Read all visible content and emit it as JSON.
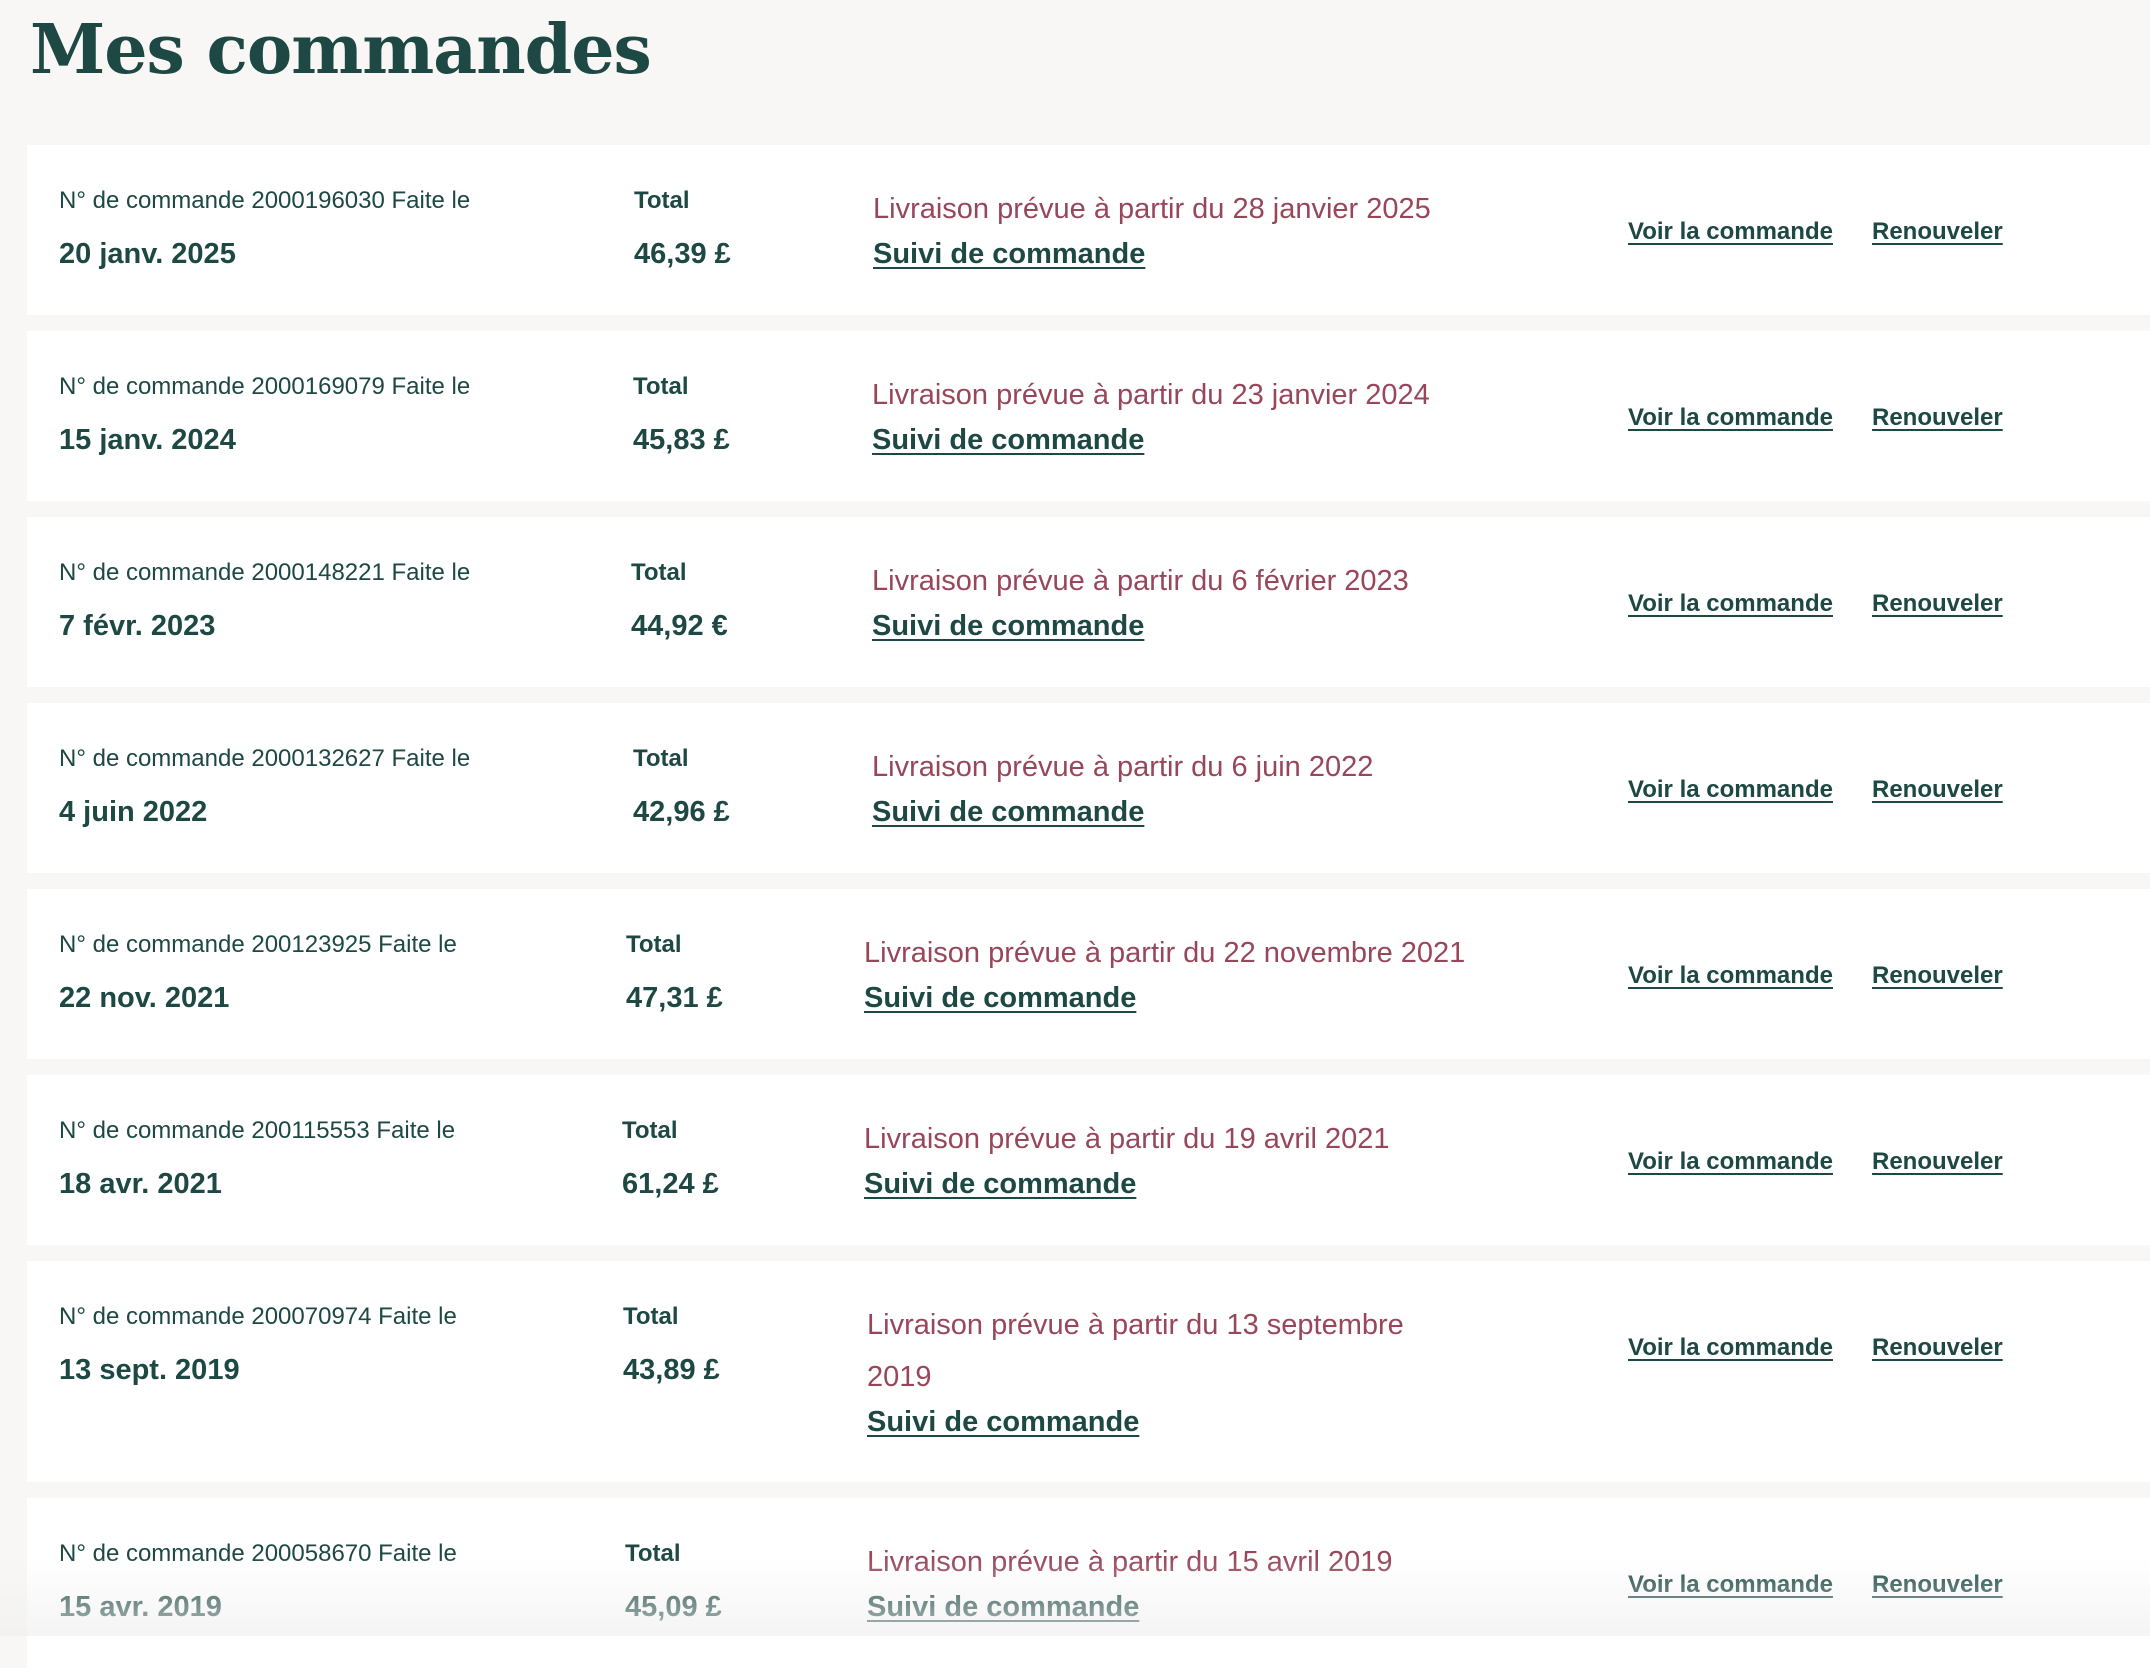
{
  "page": {
    "title": "Mes commandes"
  },
  "orders": [
    {
      "meta": "N° de commande 2000196030 Faite le",
      "date": "20 janv. 2025",
      "total_label": "Total",
      "total": "46,39 £",
      "delivery": "Livraison prévue à partir du 28 janvier 2025",
      "tracking_label": "Suivi de commande",
      "view_label": "Voir la commande",
      "renew_label": "Renouveler"
    },
    {
      "meta": "N° de commande 2000169079 Faite le",
      "date": "15 janv. 2024",
      "total_label": "Total",
      "total": "45,83 £",
      "delivery": "Livraison prévue à partir du 23 janvier 2024",
      "tracking_label": "Suivi de commande",
      "view_label": "Voir la commande",
      "renew_label": "Renouveler"
    },
    {
      "meta": "N° de commande 2000148221 Faite le",
      "date": "7 févr. 2023",
      "total_label": "Total",
      "total": "44,92 €",
      "delivery": "Livraison prévue à partir du 6 février 2023",
      "tracking_label": "Suivi de commande",
      "view_label": "Voir la commande",
      "renew_label": "Renouveler"
    },
    {
      "meta": "N° de commande 2000132627 Faite le",
      "date": "4 juin 2022",
      "total_label": "Total",
      "total": "42,96 £",
      "delivery": "Livraison prévue à partir du 6 juin 2022",
      "tracking_label": "Suivi de commande",
      "view_label": "Voir la commande",
      "renew_label": "Renouveler"
    },
    {
      "meta": "N° de commande 200123925 Faite le",
      "date": "22 nov. 2021",
      "total_label": "Total",
      "total": "47,31 £",
      "delivery": "Livraison prévue à partir du 22 novembre 2021",
      "tracking_label": "Suivi de commande",
      "view_label": "Voir la commande",
      "renew_label": "Renouveler"
    },
    {
      "meta": "N° de commande 200115553 Faite le",
      "date": "18 avr. 2021",
      "total_label": "Total",
      "total": "61,24 £",
      "delivery": "Livraison prévue à partir du 19 avril 2021",
      "tracking_label": "Suivi de commande",
      "view_label": "Voir la commande",
      "renew_label": "Renouveler"
    },
    {
      "meta": "N° de commande 200070974 Faite le",
      "date": "13 sept. 2019",
      "total_label": "Total",
      "total": "43,89 £",
      "delivery": "Livraison prévue à partir du 13 septembre 2019",
      "tracking_label": "Suivi de commande",
      "view_label": "Voir la commande",
      "renew_label": "Renouveler"
    },
    {
      "meta": "N° de commande 200058670 Faite le",
      "date": "15 avr. 2019",
      "total_label": "Total",
      "total": "45,09 £",
      "delivery": "Livraison prévue à partir du 15 avril 2019",
      "tracking_label": "Suivi de commande",
      "view_label": "Voir la commande",
      "renew_label": "Renouveler"
    }
  ]
}
